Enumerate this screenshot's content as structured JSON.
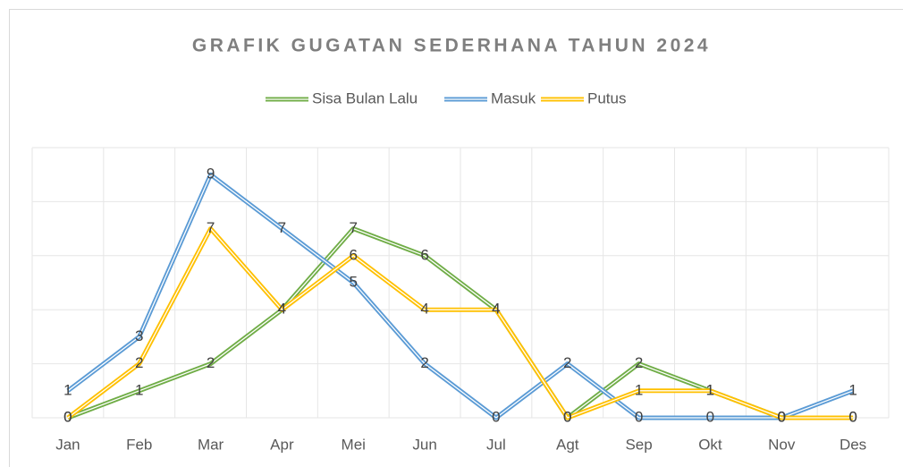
{
  "chart_data": {
    "type": "line",
    "title": "GRAFIK GUGATAN SEDERHANA TAHUN 2024",
    "categories": [
      "Jan",
      "Feb",
      "Mar",
      "Apr",
      "Mei",
      "Jun",
      "Jul",
      "Agt",
      "Sep",
      "Okt",
      "Nov",
      "Des"
    ],
    "series": [
      {
        "name": "Sisa Bulan Lalu",
        "color": "#70ad47",
        "values": [
          0,
          1,
          2,
          4,
          7,
          6,
          4,
          0,
          2,
          1,
          0,
          0
        ]
      },
      {
        "name": "Masuk",
        "color": "#5b9bd5",
        "values": [
          1,
          3,
          9,
          7,
          5,
          2,
          0,
          2,
          0,
          0,
          0,
          1
        ]
      },
      {
        "name": "Putus",
        "color": "#ffc000",
        "values": [
          0,
          2,
          7,
          4,
          6,
          4,
          4,
          0,
          1,
          1,
          0,
          0
        ]
      }
    ],
    "ylim": [
      0,
      10
    ],
    "yticks": [
      0,
      2,
      4,
      6,
      8,
      10
    ],
    "grid": true,
    "legend": "top"
  }
}
